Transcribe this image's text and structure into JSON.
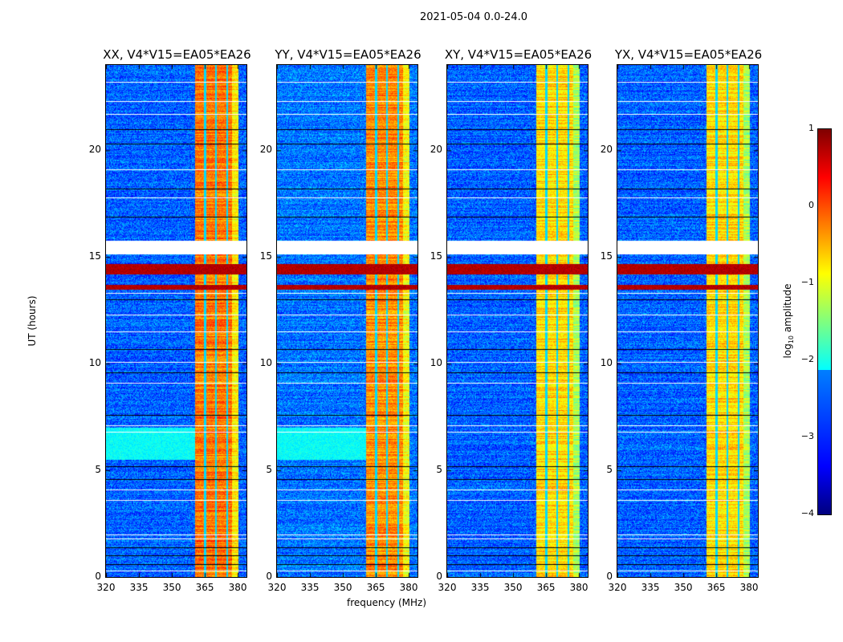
{
  "chart_data": {
    "type": "heatmap",
    "title": "2021-05-04 0.0-24.0",
    "xlabel": "frequency (MHz)",
    "ylabel": "UT (hours)",
    "xlim": [
      320,
      384
    ],
    "ylim": [
      0,
      24
    ],
    "xticks": [
      "320",
      "335",
      "350",
      "365",
      "380"
    ],
    "yticks": [
      "0",
      "5",
      "10",
      "15",
      "20"
    ],
    "colorbar": {
      "label_prefix": "log",
      "label_sub": "10",
      "label_suffix": " amplitude",
      "range": [
        -4,
        1
      ],
      "ticks": [
        "1",
        "0",
        "−1",
        "−2",
        "−3",
        "−4"
      ],
      "colormap": "jet"
    },
    "panels": [
      {
        "title": "XX, V4*V15=EA05*EA26",
        "background": -2.9,
        "band_level": -0.2,
        "cyan_patch": true
      },
      {
        "title": "YY, V4*V15=EA05*EA26",
        "background": -2.8,
        "band_level": -0.3,
        "cyan_patch": true
      },
      {
        "title": "XY, V4*V15=EA05*EA26",
        "background": -2.9,
        "band_level": -0.7,
        "cyan_patch": false
      },
      {
        "title": "YX, V4*V15=EA05*EA26",
        "background": -2.9,
        "band_level": -0.7,
        "cyan_patch": false
      }
    ],
    "rfi_band_mhz": [
      360.5,
      380
    ],
    "band_gaps_mhz": [
      365,
      370,
      375
    ],
    "flagged_hours": [
      [
        15.15,
        15.75
      ]
    ],
    "white_rows_hours": [
      23.2,
      22.3,
      21.7,
      19.1,
      17.8,
      13.3,
      12.3,
      11.5,
      10.1,
      9.1,
      7.1,
      6.8,
      4.1,
      3.6,
      2.0,
      1.8,
      0.3
    ],
    "black_rows_hours": [
      21.0,
      20.3,
      18.2,
      16.9,
      13.0,
      10.7,
      9.6,
      7.6,
      5.2,
      4.6,
      1.4,
      1.0,
      0.6
    ],
    "strong_rows_hours": [
      [
        14.2,
        14.7
      ],
      [
        13.5,
        13.7
      ]
    ]
  }
}
